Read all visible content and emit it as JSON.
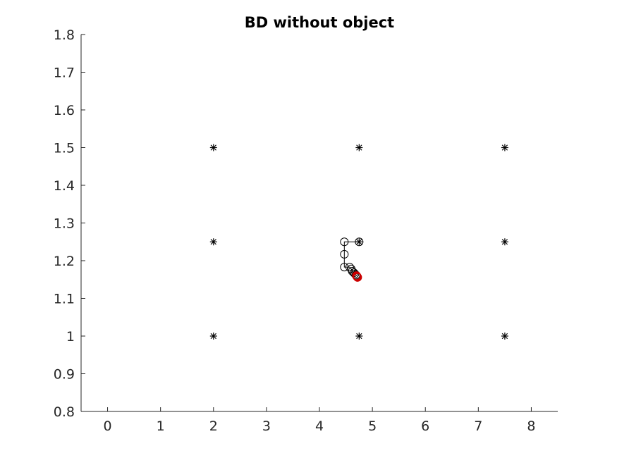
{
  "chart_data": {
    "type": "scatter",
    "title": "BD without object",
    "xlabel": "",
    "ylabel": "",
    "xlim": [
      -0.5,
      8.5
    ],
    "ylim": [
      0.8,
      1.8
    ],
    "xticks": [
      "0",
      "1",
      "2",
      "3",
      "4",
      "5",
      "6",
      "7",
      "8"
    ],
    "yticks": [
      "0.8",
      "0.9",
      "1",
      "1.1",
      "1.2",
      "1.3",
      "1.4",
      "1.5",
      "1.6",
      "1.7",
      "1.8"
    ],
    "grid": false,
    "legend": "none",
    "series": [
      {
        "marker": "asterisk",
        "color": "#000000",
        "points": [
          {
            "x": 2,
            "y": 1.0
          },
          {
            "x": 2,
            "y": 1.25
          },
          {
            "x": 2,
            "y": 1.5
          },
          {
            "x": 4.75,
            "y": 1.0
          },
          {
            "x": 4.75,
            "y": 1.25
          },
          {
            "x": 4.75,
            "y": 1.5
          },
          {
            "x": 7.5,
            "y": 1.0
          },
          {
            "x": 7.5,
            "y": 1.25
          },
          {
            "x": 7.5,
            "y": 1.5
          }
        ]
      },
      {
        "marker": "circle-with-path",
        "color": "#000000",
        "points": [
          {
            "x": 4.75,
            "y": 1.25
          },
          {
            "x": 4.47,
            "y": 1.25
          },
          {
            "x": 4.47,
            "y": 1.217
          },
          {
            "x": 4.47,
            "y": 1.183
          },
          {
            "x": 4.57,
            "y": 1.183
          },
          {
            "x": 4.6,
            "y": 1.178
          },
          {
            "x": 4.62,
            "y": 1.172
          },
          {
            "x": 4.65,
            "y": 1.168
          },
          {
            "x": 4.67,
            "y": 1.165
          },
          {
            "x": 4.69,
            "y": 1.162
          }
        ]
      },
      {
        "marker": "circle",
        "color": "#cc0000",
        "points": [
          {
            "x": 4.7,
            "y": 1.16
          },
          {
            "x": 4.71,
            "y": 1.158
          },
          {
            "x": 4.72,
            "y": 1.156
          }
        ]
      }
    ]
  }
}
